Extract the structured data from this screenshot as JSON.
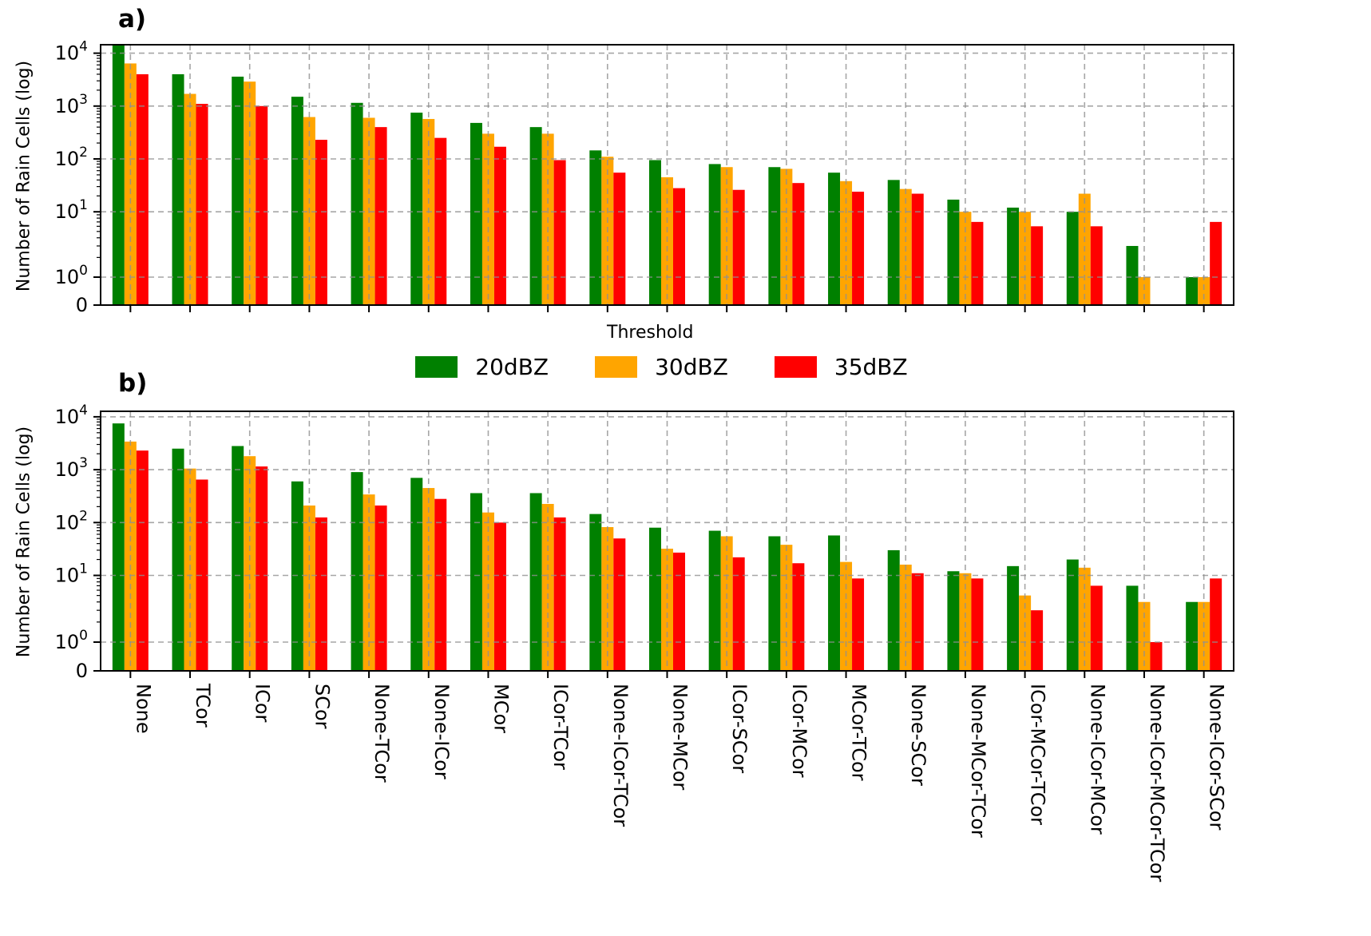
{
  "figure": {
    "panels": [
      {
        "letter": "a)",
        "ylabel": "Number of Rain Cells (log)",
        "xlabel": "Threshold"
      },
      {
        "letter": "b)",
        "ylabel": "Number of Rain Cells (log)",
        "xlabel": ""
      }
    ],
    "legend": [
      {
        "label": "20dBZ",
        "color": "#008000"
      },
      {
        "label": "30dBZ",
        "color": "#FFA500"
      },
      {
        "label": "35dBZ",
        "color": "#FF0000"
      }
    ],
    "grid_color": "#909090",
    "axis_color": "#000000"
  },
  "chart_data": [
    {
      "type": "bar",
      "panel": "a",
      "title": "a)",
      "ylabel": "Number of Rain Cells (log)",
      "xlabel": "Threshold",
      "yscale": "symlog",
      "ylim": [
        0,
        14000
      ],
      "grid": true,
      "legend_position": "below",
      "yticks": [
        {
          "value": 10000,
          "base": "10",
          "exp": "4"
        },
        {
          "value": 1000,
          "base": "10",
          "exp": "3"
        },
        {
          "value": 100,
          "base": "10",
          "exp": "2"
        },
        {
          "value": 10,
          "base": "10",
          "exp": "1"
        },
        {
          "value": 1,
          "base": "10",
          "exp": "0"
        },
        {
          "value": 0,
          "base": "0",
          "exp": ""
        }
      ],
      "categories": [
        "None",
        "TCor",
        "ICor",
        "SCor",
        "None-TCor",
        "None-ICor",
        "MCor",
        "ICor-TCor",
        "None-ICor-TCor",
        "None-MCor",
        "ICor-SCor",
        "ICor-MCor",
        "MCor-TCor",
        "None-SCor",
        "None-MCor-TCor",
        "ICor-MCor-TCor",
        "None-ICor-MCor",
        "None-ICor-MCor-TCor",
        "None-ICor-SCor"
      ],
      "series": [
        {
          "name": "20dBZ",
          "color": "#008000",
          "values": [
            14000,
            4000,
            3600,
            1500,
            1150,
            750,
            480,
            400,
            145,
            95,
            80,
            70,
            55,
            40,
            17,
            12,
            10,
            3,
            1
          ]
        },
        {
          "name": "30dBZ",
          "color": "#FFA500",
          "values": [
            6400,
            1700,
            2900,
            620,
            600,
            570,
            300,
            300,
            110,
            45,
            70,
            65,
            38,
            27,
            10,
            10,
            22,
            1,
            1
          ]
        },
        {
          "name": "35dBZ",
          "color": "#FF0000",
          "values": [
            4000,
            1100,
            1000,
            230,
            400,
            250,
            170,
            95,
            55,
            28,
            26,
            35,
            24,
            22,
            7,
            6,
            6,
            0,
            7
          ]
        }
      ]
    },
    {
      "type": "bar",
      "panel": "b",
      "title": "b)",
      "ylabel": "Number of Rain Cells (log)",
      "xlabel": "",
      "yscale": "symlog",
      "ylim": [
        0,
        14000
      ],
      "grid": true,
      "yticks": [
        {
          "value": 10000,
          "base": "10",
          "exp": "4"
        },
        {
          "value": 1000,
          "base": "10",
          "exp": "3"
        },
        {
          "value": 100,
          "base": "10",
          "exp": "2"
        },
        {
          "value": 10,
          "base": "10",
          "exp": "1"
        },
        {
          "value": 1,
          "base": "10",
          "exp": "0"
        },
        {
          "value": 0,
          "base": "0",
          "exp": ""
        }
      ],
      "categories": [
        "None",
        "TCor",
        "ICor",
        "SCor",
        "None-TCor",
        "None-ICor",
        "MCor",
        "ICor-TCor",
        "None-ICor-TCor",
        "None-MCor",
        "ICor-SCor",
        "ICor-MCor",
        "MCor-TCor",
        "None-SCor",
        "None-MCor-TCor",
        "ICor-MCor-TCor",
        "None-ICor-MCor",
        "None-ICor-MCor-TCor",
        "None-ICor-SCor"
      ],
      "series": [
        {
          "name": "20dBZ",
          "color": "#008000",
          "values": [
            7500,
            2500,
            2800,
            600,
            900,
            700,
            360,
            360,
            145,
            80,
            70,
            55,
            57,
            30,
            12,
            15,
            20,
            7,
            4
          ]
        },
        {
          "name": "30dBZ",
          "color": "#FFA500",
          "values": [
            3400,
            1050,
            1800,
            210,
            340,
            450,
            155,
            225,
            82,
            32,
            55,
            38,
            18,
            16,
            11,
            5,
            14,
            4,
            4
          ]
        },
        {
          "name": "35dBZ",
          "color": "#FF0000",
          "values": [
            2300,
            650,
            1150,
            125,
            210,
            280,
            100,
            125,
            50,
            27,
            22,
            17,
            9,
            11,
            9,
            3,
            7,
            1,
            9
          ]
        }
      ]
    }
  ]
}
